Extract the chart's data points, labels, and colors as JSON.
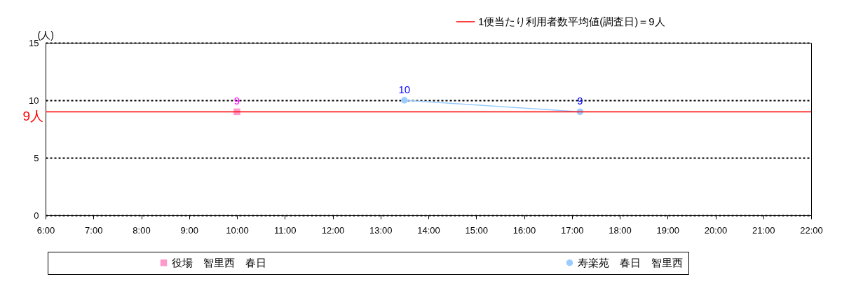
{
  "chart_data": {
    "type": "line",
    "ylabel": "(人)",
    "xlim": [
      6,
      22
    ],
    "xticks": [
      {
        "value": 6,
        "label": "6:00"
      },
      {
        "value": 7,
        "label": "7:00"
      },
      {
        "value": 8,
        "label": "8:00"
      },
      {
        "value": 9,
        "label": "9:00"
      },
      {
        "value": 10,
        "label": "10:00"
      },
      {
        "value": 11,
        "label": "11:00"
      },
      {
        "value": 12,
        "label": "12:00"
      },
      {
        "value": 13,
        "label": "13:00"
      },
      {
        "value": 14,
        "label": "14:00"
      },
      {
        "value": 15,
        "label": "15:00"
      },
      {
        "value": 16,
        "label": "16:00"
      },
      {
        "value": 17,
        "label": "17:00"
      },
      {
        "value": 18,
        "label": "18:00"
      },
      {
        "value": 19,
        "label": "19:00"
      },
      {
        "value": 20,
        "label": "20:00"
      },
      {
        "value": 21,
        "label": "21:00"
      },
      {
        "value": 22,
        "label": "22:00"
      }
    ],
    "ylim": [
      0,
      15
    ],
    "yticks": [
      0,
      5,
      10,
      15
    ],
    "grid": "y",
    "legend": "bottom",
    "data_labels": true,
    "series": [
      {
        "name": "役場　智里西　春日",
        "color": "#ff99cc",
        "marker": "square",
        "x": [
          10
        ],
        "values": [
          9
        ]
      },
      {
        "name": "寿楽苑　春日　智里西",
        "color": "#99ccff",
        "marker": "circle",
        "x": [
          13.5,
          17.17
        ],
        "values": [
          10,
          9
        ]
      }
    ],
    "ref_lines": [
      {
        "axis": "y",
        "value": 9,
        "label": "1便当たり利用者数平均値(調査日)＝9人",
        "color": "#ff0000"
      }
    ],
    "annotations": [
      "9人"
    ]
  }
}
